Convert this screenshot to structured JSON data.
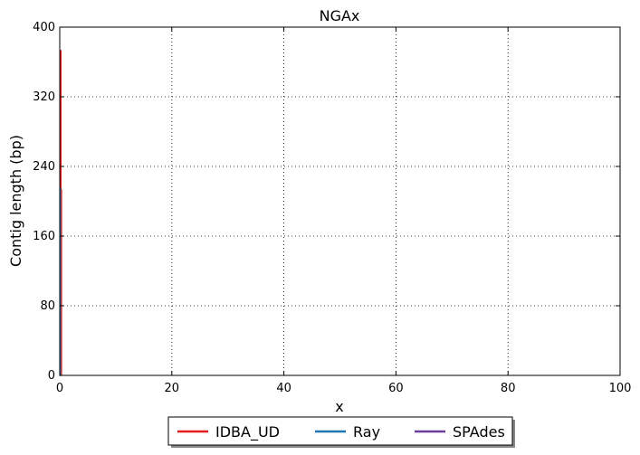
{
  "chart_data": {
    "type": "line",
    "title": "NGAx",
    "xlabel": "x",
    "ylabel": "Contig length  (bp)",
    "xlim": [
      0,
      100
    ],
    "ylim": [
      0,
      400
    ],
    "xticks": [
      0,
      20,
      40,
      60,
      80,
      100
    ],
    "yticks": [
      0,
      80,
      160,
      240,
      320,
      400
    ],
    "grid": true,
    "legend_position": "bottom-center",
    "series": [
      {
        "name": "IDBA_UD",
        "color": "#e41a1c",
        "x": [
          0,
          0.2,
          0.2,
          0.3,
          0.3
        ],
        "y": [
          373,
          373,
          213,
          213,
          0
        ]
      },
      {
        "name": "Ray",
        "color": "#1f78b4",
        "x": [
          0,
          0.1,
          0.1,
          0.2,
          0.2
        ],
        "y": [
          215,
          215,
          0,
          0,
          0
        ]
      },
      {
        "name": "SPAdes",
        "color": "#6a3d9a",
        "x": [
          0,
          0.05,
          0.05
        ],
        "y": [
          0,
          0,
          0
        ]
      }
    ]
  }
}
